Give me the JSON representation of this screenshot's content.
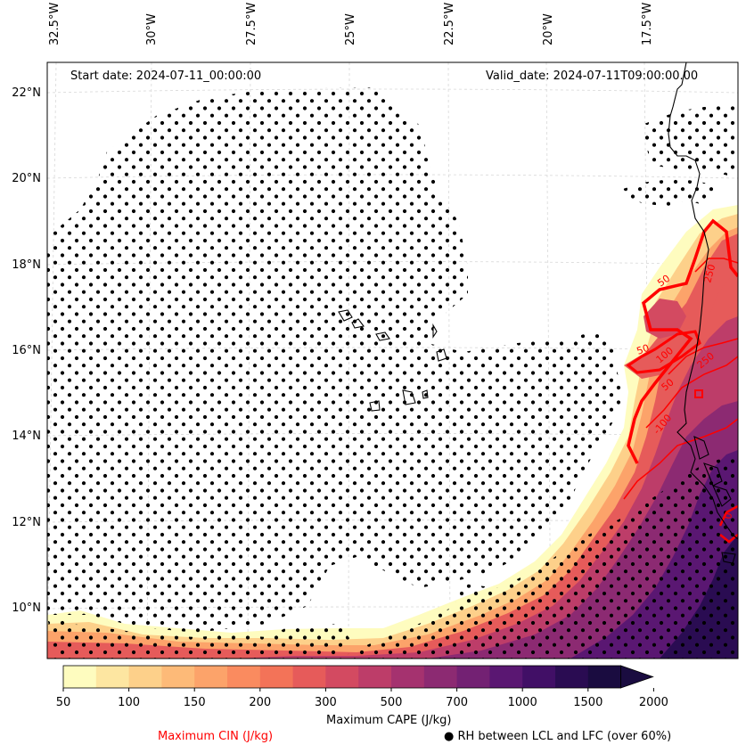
{
  "header": {
    "start_date": "Start date: 2024-07-11_00:00:00",
    "valid_date": "Valid_date: 2024-07-11T09:00:00.00"
  },
  "longitude_labels": [
    "32.5°W",
    "30°W",
    "27.5°W",
    "25°W",
    "22.5°W",
    "20°W",
    "17.5°W"
  ],
  "latitude_labels": [
    "22°N",
    "20°N",
    "18°N",
    "16°N",
    "14°N",
    "12°N",
    "10°N"
  ],
  "colorbar": {
    "title": "Maximum CAPE (J/kg)",
    "ticks": [
      "50",
      "100",
      "150",
      "200",
      "300",
      "500",
      "700",
      "1000",
      "1500",
      "2000"
    ],
    "colors": [
      "#fefcbf",
      "#fde6a1",
      "#fdd08a",
      "#fdba78",
      "#fca36a",
      "#fa8b5f",
      "#f37358",
      "#e65b5a",
      "#d34a61",
      "#bd3d69",
      "#a5326f",
      "#8c2a72",
      "#732173",
      "#5a1772",
      "#410f66",
      "#2a0c52",
      "#1a0c40"
    ]
  },
  "legend": {
    "cin_label": "Maximum CIN (J/kg)",
    "cin_color": "#ff0000",
    "rh_symbol": "●",
    "rh_label": "RH between LCL and LFC (over 60%)"
  },
  "contour_labels": [
    "50",
    "250",
    "50",
    "100",
    "250",
    "-100",
    "50",
    "0"
  ]
}
